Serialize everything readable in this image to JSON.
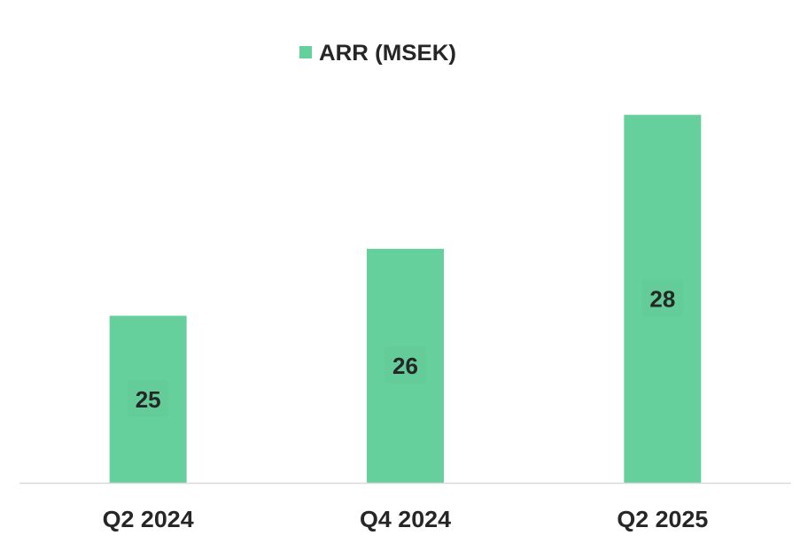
{
  "chart_data": {
    "type": "bar",
    "categories": [
      "Q2 2024",
      "Q4 2024",
      "Q2 2025"
    ],
    "series": [
      {
        "name": "ARR (MSEK)",
        "values": [
          25,
          26,
          28
        ],
        "color": "#66D09D"
      }
    ],
    "data_labels": [
      "25",
      "26",
      "28"
    ],
    "title": "",
    "xlabel": "",
    "ylabel": "",
    "ylim": [
      22.5,
      29
    ],
    "grid": false,
    "y_axis_visible": false,
    "legend_position": "top-center"
  },
  "colors": {
    "bar": "#66D09D",
    "label_bg": "#63CC99",
    "text": "#262626",
    "axis": "#D9D9D9"
  }
}
